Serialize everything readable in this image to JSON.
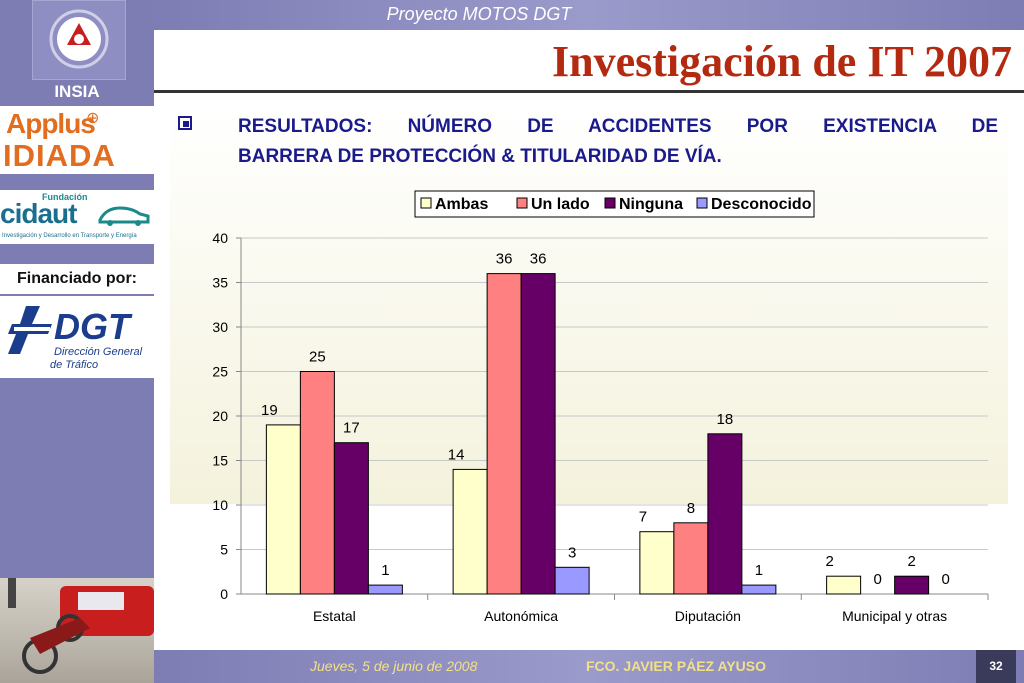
{
  "header": {
    "project": "Proyecto MOTOS DGT",
    "title": "Investigación de IT 2007"
  },
  "sidebar": {
    "insia": "INSIA",
    "applus": "Applus",
    "applus_plus": "⊕",
    "idiada": "IDIADA",
    "cidaut_fund": "Fundación",
    "cidaut": "cidaut",
    "cidaut_sub": "Investigación y Desarrollo en Transporte y Energía",
    "financiado": "Financiado por:",
    "dgt": "DGT",
    "dgt_sub1": "Dirección General",
    "dgt_sub2": "de Tráfico"
  },
  "heading": {
    "line1": "RESULTADOS: NÚMERO DE ACCIDENTES POR EXISTENCIA DE",
    "line2": "BARRERA DE PROTECCIÓN & TITULARIDAD DE VÍA."
  },
  "footer": {
    "date": "Jueves, 5 de junio de 2008",
    "author": "FCO. JAVIER PÁEZ AYUSO",
    "page": "32"
  },
  "colors": {
    "ambas": "#ffffcc",
    "un_lado": "#ff8080",
    "ninguna": "#660066",
    "desconocido": "#9999ff"
  },
  "chart_data": {
    "type": "bar",
    "title": "",
    "xlabel": "",
    "ylabel": "",
    "ylim": [
      0,
      40
    ],
    "yticks": [
      0,
      5,
      10,
      15,
      20,
      25,
      30,
      35,
      40
    ],
    "grid": true,
    "legend": "top-center",
    "categories": [
      "Estatal",
      "Autonómica",
      "Diputación",
      "Municipal y otras"
    ],
    "series": [
      {
        "name": "Ambas",
        "color": "#ffffcc",
        "values": [
          19,
          14,
          7,
          2
        ]
      },
      {
        "name": "Un lado",
        "color": "#ff8080",
        "values": [
          25,
          36,
          8,
          0
        ]
      },
      {
        "name": "Ninguna",
        "color": "#660066",
        "values": [
          17,
          36,
          18,
          2
        ]
      },
      {
        "name": "Desconocido",
        "color": "#9999ff",
        "values": [
          1,
          3,
          1,
          0
        ]
      }
    ]
  }
}
